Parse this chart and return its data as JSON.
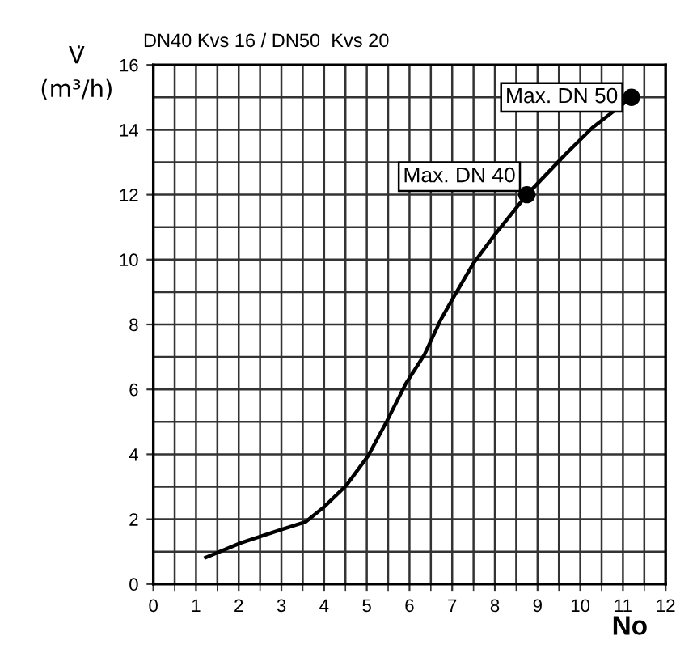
{
  "chart_data": {
    "type": "line",
    "title": "DN40 Kvs 16 / DN50  Kvs 20",
    "xlabel": "No",
    "ylabel": "V̇\n(m³/h)",
    "series": [
      {
        "color": "#000000",
        "x": [
          1.23,
          2.05,
          3.0,
          3.57,
          4.0,
          4.52,
          5.03,
          5.47,
          5.91,
          6.35,
          6.73,
          7.05,
          7.49,
          8.0,
          8.75,
          9.65,
          10.28,
          11.2
        ],
        "values": [
          0.82,
          1.27,
          1.68,
          1.92,
          2.38,
          3.04,
          3.95,
          5.02,
          6.17,
          7.07,
          8.14,
          8.88,
          9.87,
          10.77,
          12.0,
          13.24,
          14.06,
          15.0
        ]
      },
      {
        "type": "scatter",
        "color": "#000000",
        "marker": "circle",
        "x": [
          8.75,
          11.2
        ],
        "values": [
          12.0,
          15.0
        ]
      }
    ],
    "annotations": [
      {
        "text": "Max. DN 40",
        "x": 8.75,
        "y": 12.0
      },
      {
        "text": "Max. DN 50",
        "x": 11.2,
        "y": 15.0
      }
    ],
    "xlim": [
      0,
      12
    ],
    "xticks": [
      0,
      1,
      2,
      3,
      4,
      5,
      6,
      7,
      8,
      9,
      10,
      11,
      12
    ],
    "ylim": [
      0,
      16
    ],
    "yticks": [
      0,
      2,
      4,
      6,
      8,
      10,
      12,
      14,
      16
    ],
    "grid": true
  }
}
